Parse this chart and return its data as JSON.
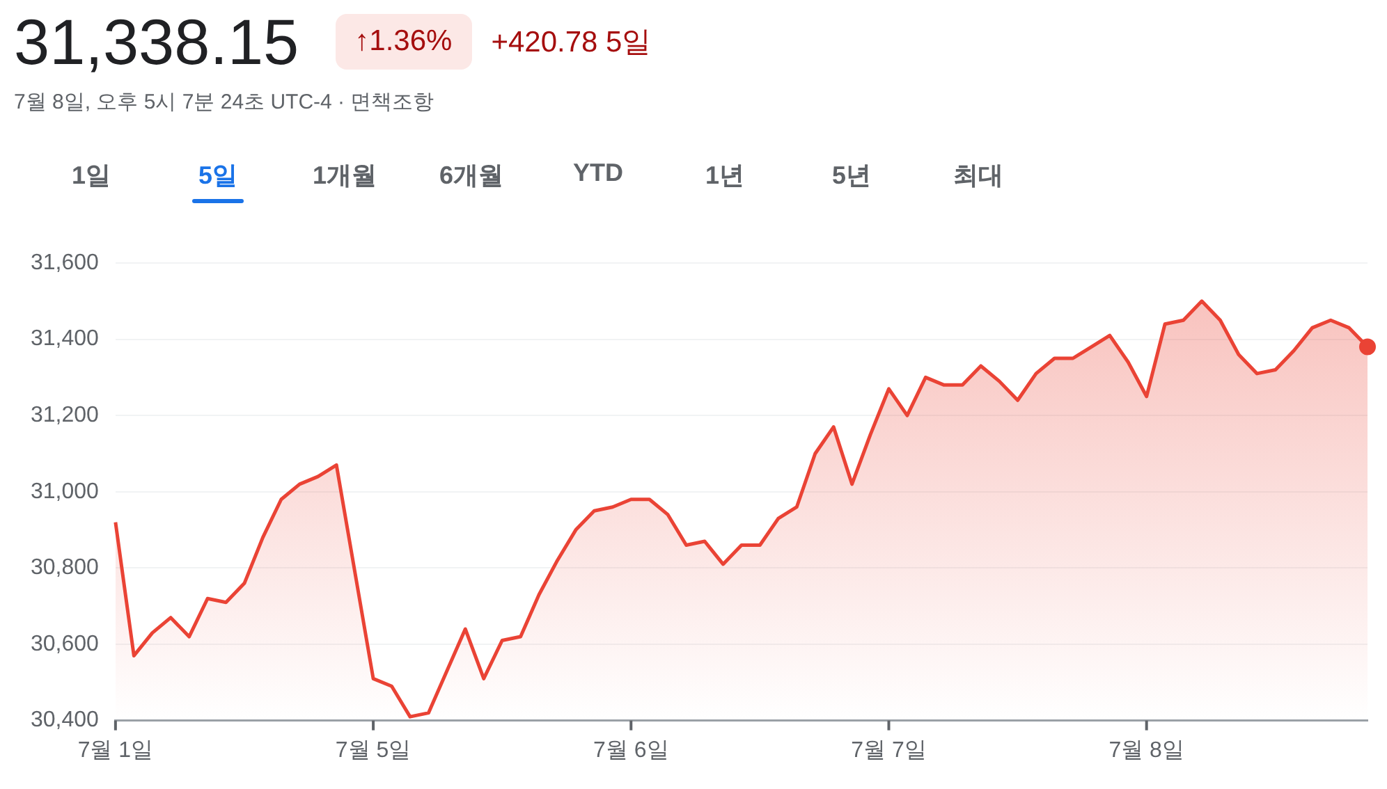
{
  "chart_data": {
    "type": "area",
    "title": "31,338.15",
    "subtitle": "7월 8일, 오후 5시 7분 24초 UTC-4 · 면책조항",
    "annotations": [
      "↑1.36%",
      "+420.78 5일",
      "1일",
      "5일",
      "1개월",
      "6개월",
      "YTD",
      "1년",
      "5년",
      "최대"
    ],
    "categories": [
      "7월 1일",
      null,
      null,
      null,
      null,
      null,
      null,
      null,
      null,
      null,
      null,
      null,
      null,
      null,
      "7월 5일",
      null,
      null,
      null,
      null,
      null,
      null,
      null,
      null,
      null,
      null,
      null,
      null,
      null,
      "7월 6일",
      null,
      null,
      null,
      null,
      null,
      null,
      null,
      null,
      null,
      null,
      null,
      null,
      null,
      "7월 7일",
      null,
      null,
      null,
      null,
      null,
      null,
      null,
      null,
      null,
      null,
      null,
      null,
      null,
      "7월 8일",
      null,
      null,
      null,
      null,
      null,
      null,
      null,
      null,
      null,
      null,
      null,
      null
    ],
    "series": [
      {
        "color": "#ea4335",
        "values": [
          30920,
          30570,
          30630,
          30670,
          30620,
          30720,
          30710,
          30760,
          30880,
          30980,
          31020,
          31040,
          31070,
          30790,
          30510,
          30490,
          30410,
          30420,
          30530,
          30640,
          30510,
          30610,
          30620,
          30730,
          30820,
          30900,
          30950,
          30960,
          30980,
          30980,
          30940,
          30860,
          30870,
          30810,
          30860,
          30860,
          30930,
          30960,
          31100,
          31170,
          31020,
          31150,
          31270,
          31200,
          31300,
          31280,
          31280,
          31330,
          31290,
          31240,
          31310,
          31350,
          31350,
          31380,
          31410,
          31340,
          31250,
          31440,
          31450,
          31500,
          31450,
          31360,
          31310,
          31320,
          31370,
          31430,
          31450,
          31430,
          31380
        ]
      }
    ],
    "ylim": [
      30400,
      31600
    ],
    "yticks": [
      {
        "value": 30400,
        "label": "30,400"
      },
      {
        "value": 30600,
        "label": "30,600"
      },
      {
        "value": 30800,
        "label": "30,800"
      },
      {
        "value": 31000,
        "label": "31,000"
      },
      {
        "value": 31200,
        "label": "31,200"
      },
      {
        "value": 31400,
        "label": "31,400"
      },
      {
        "value": 31600,
        "label": "31,600"
      }
    ],
    "grid": "y",
    "legend": false
  }
}
